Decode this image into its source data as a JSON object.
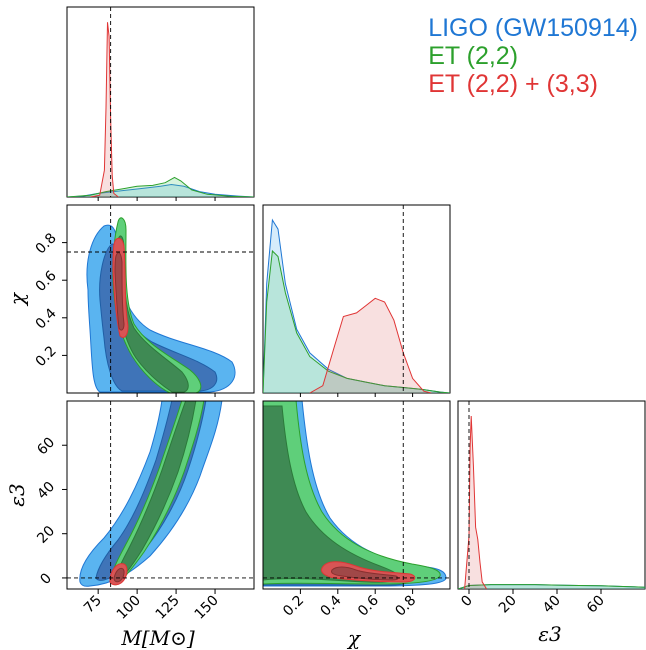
{
  "chart_data": {
    "type": "corner",
    "parameters": [
      {
        "name": "M",
        "label": "M[M⊙]",
        "truth": 83,
        "range": [
          55,
          175
        ],
        "ticks": [
          75,
          100,
          125,
          150
        ]
      },
      {
        "name": "chi",
        "label": "χ",
        "truth": 0.75,
        "range": [
          0,
          1
        ],
        "ticks": [
          0.2,
          0.4,
          0.6,
          0.8
        ]
      },
      {
        "name": "eps3",
        "label": "ε3",
        "truth": 0,
        "range": [
          -5,
          80
        ],
        "ticks": [
          0,
          20,
          40,
          60
        ]
      }
    ],
    "series": [
      {
        "name": "LIGO (GW150914)",
        "color": "#1f77d4",
        "fill": "#5ab4f0"
      },
      {
        "name": "ET (2,2)",
        "color": "#2ca02c",
        "fill": "#5fcf7a"
      },
      {
        "name": "ET (2,2) + (3,3)",
        "color": "#e03535",
        "fill": "#d85555"
      }
    ],
    "marginals": {
      "M": {
        "LIGO (GW150914)": [
          [
            55,
            0
          ],
          [
            65,
            0.005
          ],
          [
            75,
            0.02
          ],
          [
            85,
            0.03
          ],
          [
            95,
            0.04
          ],
          [
            105,
            0.05
          ],
          [
            115,
            0.06
          ],
          [
            122,
            0.07
          ],
          [
            130,
            0.06
          ],
          [
            140,
            0.03
          ],
          [
            150,
            0.015
          ],
          [
            165,
            0.005
          ],
          [
            175,
            0
          ]
        ],
        "ET (2,2)": [
          [
            55,
            0
          ],
          [
            70,
            0.01
          ],
          [
            80,
            0.03
          ],
          [
            90,
            0.045
          ],
          [
            100,
            0.06
          ],
          [
            110,
            0.065
          ],
          [
            118,
            0.08
          ],
          [
            124,
            0.11
          ],
          [
            128,
            0.09
          ],
          [
            135,
            0.04
          ],
          [
            145,
            0.015
          ],
          [
            160,
            0.004
          ],
          [
            175,
            0
          ]
        ],
        "ET (2,2) + (3,3)": [
          [
            70,
            0
          ],
          [
            76,
            0.01
          ],
          [
            79,
            0.15
          ],
          [
            80,
            0.5
          ],
          [
            81,
            0.98
          ],
          [
            82,
            0.9
          ],
          [
            83,
            0.45
          ],
          [
            84,
            0.12
          ],
          [
            85,
            0.02
          ],
          [
            88,
            0
          ]
        ]
      },
      "chi": {
        "LIGO (GW150914)": [
          [
            0,
            0
          ],
          [
            0.02,
            0.6
          ],
          [
            0.05,
            0.95
          ],
          [
            0.08,
            0.9
          ],
          [
            0.12,
            0.6
          ],
          [
            0.18,
            0.35
          ],
          [
            0.25,
            0.22
          ],
          [
            0.35,
            0.13
          ],
          [
            0.45,
            0.08
          ],
          [
            0.55,
            0.06
          ],
          [
            0.65,
            0.04
          ],
          [
            0.75,
            0.03
          ],
          [
            0.85,
            0.02
          ],
          [
            0.95,
            0.005
          ],
          [
            1,
            0
          ]
        ],
        "ET (2,2)": [
          [
            0,
            0
          ],
          [
            0.02,
            0.5
          ],
          [
            0.05,
            0.78
          ],
          [
            0.08,
            0.75
          ],
          [
            0.12,
            0.55
          ],
          [
            0.18,
            0.33
          ],
          [
            0.25,
            0.2
          ],
          [
            0.35,
            0.12
          ],
          [
            0.45,
            0.08
          ],
          [
            0.55,
            0.06
          ],
          [
            0.65,
            0.04
          ],
          [
            0.75,
            0.03
          ],
          [
            0.85,
            0.02
          ],
          [
            0.95,
            0.005
          ],
          [
            1,
            0
          ]
        ],
        "ET (2,2) + (3,3)": [
          [
            0.25,
            0
          ],
          [
            0.32,
            0.04
          ],
          [
            0.38,
            0.25
          ],
          [
            0.43,
            0.42
          ],
          [
            0.5,
            0.44
          ],
          [
            0.55,
            0.48
          ],
          [
            0.6,
            0.52
          ],
          [
            0.65,
            0.5
          ],
          [
            0.7,
            0.4
          ],
          [
            0.75,
            0.22
          ],
          [
            0.8,
            0.08
          ],
          [
            0.86,
            0.01
          ],
          [
            0.9,
            0
          ]
        ]
      },
      "eps3": {
        "LIGO (GW150914)": [
          [
            -5,
            0
          ],
          [
            0,
            0.02
          ],
          [
            10,
            0.025
          ],
          [
            20,
            0.025
          ],
          [
            30,
            0.025
          ],
          [
            40,
            0.022
          ],
          [
            50,
            0.02
          ],
          [
            60,
            0.018
          ],
          [
            70,
            0.014
          ],
          [
            80,
            0.01
          ]
        ],
        "ET (2,2)": [
          [
            -5,
            0
          ],
          [
            0,
            0.02
          ],
          [
            10,
            0.025
          ],
          [
            20,
            0.025
          ],
          [
            30,
            0.025
          ],
          [
            40,
            0.022
          ],
          [
            50,
            0.02
          ],
          [
            60,
            0.018
          ],
          [
            70,
            0.014
          ],
          [
            80,
            0.01
          ]
        ],
        "ET (2,2) + (3,3)": [
          [
            -2,
            0
          ],
          [
            0,
            0.3
          ],
          [
            0.5,
            0.8
          ],
          [
            1,
            0.98
          ],
          [
            2,
            0.7
          ],
          [
            3,
            0.35
          ],
          [
            4,
            0.28
          ],
          [
            5,
            0.15
          ],
          [
            6,
            0.04
          ],
          [
            8,
            0
          ]
        ]
      }
    },
    "title": "",
    "xlabel": "",
    "ylabel": "",
    "legend_position": "top-right",
    "grid": false
  }
}
